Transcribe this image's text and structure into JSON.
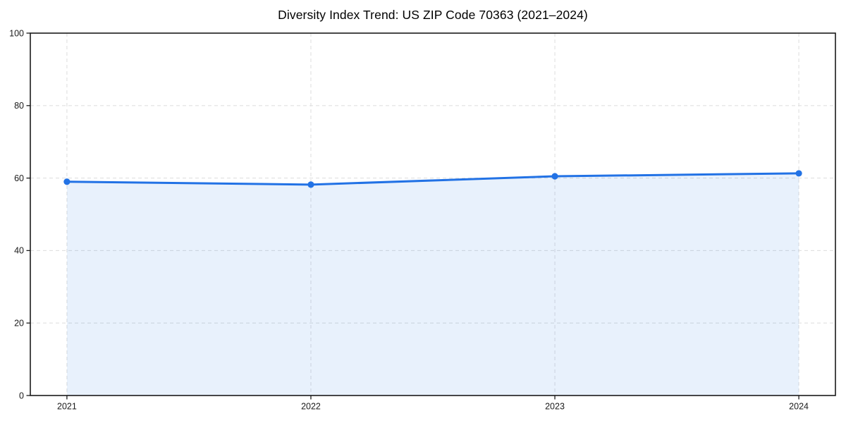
{
  "chart_data": {
    "type": "line",
    "title": "Diversity Index Trend: US ZIP Code 70363 (2021–2024)",
    "x": [
      2021,
      2022,
      2023,
      2024
    ],
    "xtick_labels": [
      "2021",
      "2022",
      "2023",
      "2024"
    ],
    "series": [
      {
        "name": "Diversity Index",
        "values": [
          59.0,
          58.2,
          60.5,
          61.3
        ]
      }
    ],
    "xlabel": "",
    "ylabel": "",
    "xlim": [
      2020.85,
      2024.15
    ],
    "ylim": [
      0,
      100
    ],
    "yticks": [
      0,
      20,
      40,
      60,
      80,
      100
    ],
    "area_fill": true,
    "markers": "circle",
    "grid": "dashed-both-axes",
    "legend": "none",
    "colors": {
      "line": "#2272e5",
      "marker": "#2272e5",
      "area_fill": "#2272e5",
      "area_opacity": 0.1,
      "grid": "#e0e0e0",
      "axis": "#1a1a1a",
      "tick_label": "#1a1a1a",
      "title": "#000000",
      "background": "#ffffff"
    }
  }
}
